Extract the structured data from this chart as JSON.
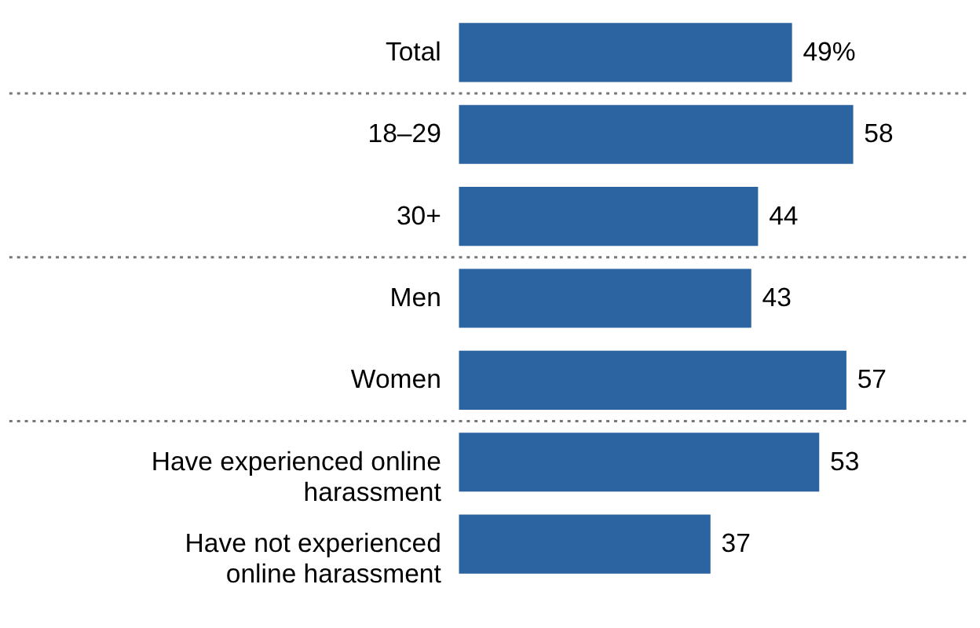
{
  "chart_data": {
    "type": "bar",
    "orientation": "horizontal",
    "categories": [
      "Total",
      "18–29",
      "30+",
      "Men",
      "Women",
      "Have experienced online harassment",
      "Have not experienced online harassment"
    ],
    "values": [
      49,
      58,
      44,
      43,
      57,
      53,
      37
    ],
    "color": "#2b64a0",
    "value_labels": [
      "49%",
      "58",
      "44",
      "43",
      "57",
      "53",
      "37"
    ],
    "grid": false
  }
}
